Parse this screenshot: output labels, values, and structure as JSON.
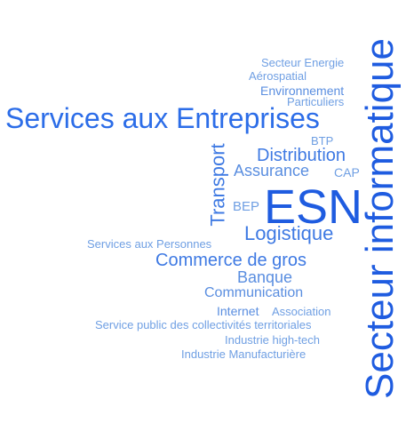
{
  "colors": {
    "c1": "#2c6de8",
    "c2": "#3f7ae3",
    "c3": "#5a8ee0",
    "c4": "#6f9fe3",
    "c5": "#1f5ce0"
  },
  "words": [
    {
      "id": "secteur-informatique",
      "text": "Secteur informatique",
      "color": "c5"
    },
    {
      "id": "esn",
      "text": "ESN",
      "color": "c5"
    },
    {
      "id": "services-aux-entreprises",
      "text": "Services aux Entreprises",
      "color": "c1"
    },
    {
      "id": "transport",
      "text": "Transport",
      "color": "c2"
    },
    {
      "id": "distribution",
      "text": "Distribution",
      "color": "c2"
    },
    {
      "id": "logistique",
      "text": "Logistique",
      "color": "c2"
    },
    {
      "id": "commerce-de-gros",
      "text": "Commerce de gros",
      "color": "c2"
    },
    {
      "id": "assurance",
      "text": "Assurance",
      "color": "c3"
    },
    {
      "id": "banque",
      "text": "Banque",
      "color": "c3"
    },
    {
      "id": "communication",
      "text": "Communication",
      "color": "c3"
    },
    {
      "id": "environnement",
      "text": "Environnement",
      "color": "c3"
    },
    {
      "id": "secteur-energie",
      "text": "Secteur Energie",
      "color": "c4"
    },
    {
      "id": "aerospatial",
      "text": "Aérospatial",
      "color": "c4"
    },
    {
      "id": "particuliers",
      "text": "Particuliers",
      "color": "c4"
    },
    {
      "id": "btp",
      "text": "BTP",
      "color": "c4"
    },
    {
      "id": "cap",
      "text": "CAP",
      "color": "c4"
    },
    {
      "id": "bep",
      "text": "BEP",
      "color": "c4"
    },
    {
      "id": "services-aux-personnes",
      "text": "Services aux Personnes",
      "color": "c4"
    },
    {
      "id": "internet",
      "text": "Internet",
      "color": "c3"
    },
    {
      "id": "association",
      "text": "Association",
      "color": "c4"
    },
    {
      "id": "service-public",
      "text": "Service public des collectivités territoriales",
      "color": "c4"
    },
    {
      "id": "industrie-high-tech",
      "text": "Industrie high-tech",
      "color": "c4"
    },
    {
      "id": "industrie-manufacturiere",
      "text": "Industrie Manufacturière",
      "color": "c4"
    }
  ]
}
